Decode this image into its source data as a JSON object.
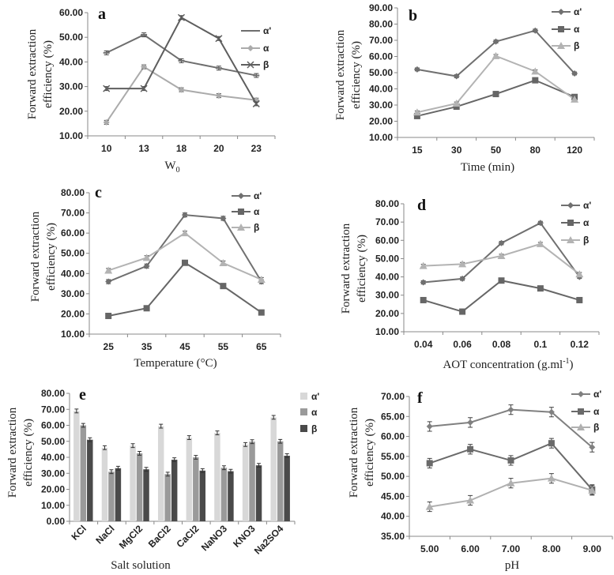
{
  "chart_data": [
    {
      "panel": "a",
      "type": "line",
      "xlabel": "W0",
      "xlabel_sub": "0",
      "xlabel_main": "W",
      "ylabel": [
        "Forward extraction",
        "efficiency (%)"
      ],
      "categories": [
        "10",
        "13",
        "18",
        "20",
        "23"
      ],
      "ylim": [
        10,
        60
      ],
      "yticks": [
        "10.00",
        "20.00",
        "30.00",
        "40.00",
        "50.00",
        "60.00"
      ],
      "error_bar": 0.8,
      "series": [
        {
          "name": "α'",
          "marker": "dash",
          "color": "#6e6e6e",
          "values": [
            43.7,
            51.0,
            40.5,
            37.5,
            34.5
          ]
        },
        {
          "name": "α",
          "marker": "diamond",
          "color": "#ababab",
          "values": [
            15.5,
            38.0,
            28.7,
            26.3,
            24.5
          ]
        },
        {
          "name": "β",
          "marker": "x",
          "color": "#5e5e5e",
          "values": [
            29.2,
            29.2,
            58.0,
            49.5,
            23.0
          ]
        }
      ]
    },
    {
      "panel": "b",
      "type": "line",
      "xlabel_main": "Time (min)",
      "xlabel_sub": "",
      "ylabel": [
        "Forward extraction",
        "efficiency (%)"
      ],
      "categories": [
        "15",
        "30",
        "50",
        "80",
        "120"
      ],
      "ylim": [
        10,
        90
      ],
      "yticks": [
        "10.00",
        "20.00",
        "30.00",
        "40.00",
        "50.00",
        "60.00",
        "70.00",
        "80.00",
        "90.00"
      ],
      "error_bar": 0.9,
      "series": [
        {
          "name": "α'",
          "marker": "diamond",
          "color": "#707070",
          "values": [
            52.0,
            47.8,
            69.2,
            76.0,
            49.5
          ]
        },
        {
          "name": "α",
          "marker": "square",
          "color": "#666666",
          "values": [
            23.2,
            29.0,
            36.8,
            45.3,
            35.0
          ]
        },
        {
          "name": "β",
          "marker": "triangle",
          "color": "#b3b3b3",
          "values": [
            25.5,
            31.0,
            60.3,
            50.8,
            33.5
          ]
        }
      ]
    },
    {
      "panel": "c",
      "type": "line",
      "xlabel_main": "Temperature (°C)",
      "xlabel_sub": "",
      "ylabel": [
        "Forward extraction",
        "efficiency (%)"
      ],
      "categories": [
        "25",
        "35",
        "45",
        "55",
        "65"
      ],
      "ylim": [
        10,
        80
      ],
      "yticks": [
        "10.00",
        "20.00",
        "30.00",
        "40.00",
        "50.00",
        "60.00",
        "70.00",
        "80.00"
      ],
      "error_bar": 1.0,
      "series": [
        {
          "name": "α'",
          "marker": "diamond",
          "color": "#707070",
          "values": [
            36.0,
            43.7,
            69.0,
            67.3,
            36.0
          ]
        },
        {
          "name": "α",
          "marker": "square",
          "color": "#666666",
          "values": [
            19.0,
            22.8,
            45.3,
            33.8,
            20.7
          ]
        },
        {
          "name": "β",
          "marker": "triangle",
          "color": "#b3b3b3",
          "values": [
            41.5,
            47.8,
            60.0,
            45.2,
            37.0
          ]
        }
      ]
    },
    {
      "panel": "d",
      "type": "line",
      "xlabel_main": "AOT concentration (g.ml",
      "xlabel_sup": "-1",
      "xlabel_end": ")",
      "ylabel": [
        "Forward extraction",
        "efficiency (%)"
      ],
      "categories": [
        "0.04",
        "0.06",
        "0.08",
        "0.1",
        "0.12"
      ],
      "ylim": [
        10,
        80
      ],
      "yticks": [
        "10.00",
        "20.00",
        "30.00",
        "40.00",
        "50.00",
        "60.00",
        "70.00",
        "80.00"
      ],
      "error_bar": 0.9,
      "series": [
        {
          "name": "α'",
          "marker": "diamond",
          "color": "#707070",
          "values": [
            37.0,
            39.0,
            58.5,
            69.5,
            40.0
          ]
        },
        {
          "name": "α",
          "marker": "square",
          "color": "#666666",
          "values": [
            27.3,
            21.0,
            38.0,
            33.7,
            27.3
          ]
        },
        {
          "name": "β",
          "marker": "triangle",
          "color": "#b3b3b3",
          "values": [
            46.0,
            47.0,
            51.5,
            58.0,
            41.5
          ]
        }
      ]
    },
    {
      "panel": "e",
      "type": "bar",
      "xlabel_main": "Salt solution",
      "xlabel_sub": "",
      "ylabel": [
        "Forward extraction",
        "efficiency (%)"
      ],
      "categories": [
        "KCl",
        "NaCl",
        "MgCl2",
        "BaCl2",
        "CaCl2",
        "NaNO3",
        "KNO3",
        "Na2SO4"
      ],
      "ylim": [
        0,
        80
      ],
      "yticks": [
        "0.00",
        "10.00",
        "20.00",
        "30.00",
        "40.00",
        "50.00",
        "60.00",
        "70.00",
        "80.00"
      ],
      "error_bar": 1.2,
      "series": [
        {
          "name": "α'",
          "color": "#d8d8d8",
          "values": [
            69.0,
            46.0,
            47.3,
            59.5,
            52.3,
            55.3,
            48.0,
            65.0
          ]
        },
        {
          "name": "α",
          "color": "#9a9a9a",
          "values": [
            60.0,
            31.0,
            42.5,
            29.5,
            40.0,
            33.5,
            49.8,
            50.0
          ]
        },
        {
          "name": "β",
          "color": "#4a4a4a",
          "values": [
            51.0,
            33.2,
            32.5,
            38.5,
            31.7,
            31.3,
            35.0,
            41.0
          ]
        }
      ]
    },
    {
      "panel": "f",
      "type": "line",
      "xlabel_main": "pH",
      "xlabel_sub": "",
      "ylabel": [
        "Forward extraction",
        "efficiency (%)"
      ],
      "categories": [
        "5.00",
        "6.00",
        "7.00",
        "8.00",
        "9.00"
      ],
      "ylim": [
        35,
        70
      ],
      "yticks": [
        "35.00",
        "40.00",
        "45.00",
        "50.00",
        "55.00",
        "60.00",
        "65.00",
        "70.00"
      ],
      "error_bar": 1.2,
      "series": [
        {
          "name": "α'",
          "marker": "diamond",
          "color": "#808080",
          "values": [
            62.5,
            63.5,
            66.7,
            66.1,
            57.3
          ]
        },
        {
          "name": "α",
          "marker": "square",
          "color": "#6a6a6a",
          "values": [
            53.3,
            56.8,
            54.0,
            58.3,
            46.7
          ]
        },
        {
          "name": "β",
          "marker": "triangle",
          "color": "#b0b0b0",
          "values": [
            42.4,
            44.0,
            48.3,
            49.5,
            46.5
          ]
        }
      ]
    }
  ]
}
